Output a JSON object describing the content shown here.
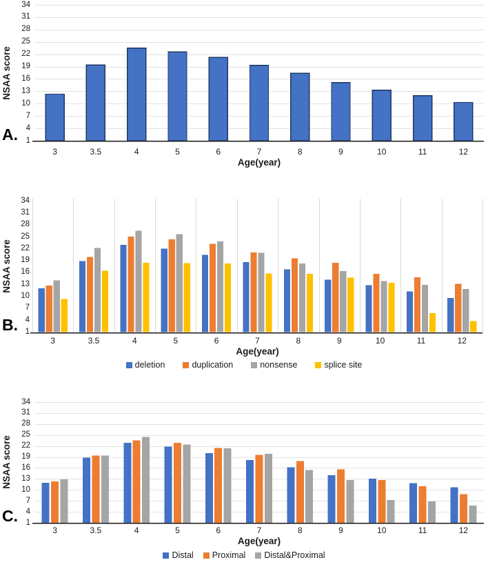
{
  "colors": {
    "blue": "#4472C4",
    "orange": "#ED7D31",
    "gray": "#A5A5A5",
    "yellow": "#FFC000",
    "bar_border": "#1F3864",
    "gridline": "#E2E2E2",
    "vertical_gridline": "#D9D9D9",
    "axis_line": "#1a1a1a",
    "text": "#1a1a1a"
  },
  "chart_data": [
    {
      "id": "A",
      "panel_label": "A.",
      "type": "bar",
      "xlabel": "Age(year)",
      "ylabel": "NSAA score",
      "categories": [
        "3",
        "3.5",
        "4",
        "5",
        "6",
        "7",
        "8",
        "9",
        "10",
        "11",
        "12"
      ],
      "ylim": [
        1,
        34
      ],
      "y_ticks": [
        1,
        4,
        7,
        10,
        13,
        16,
        19,
        22,
        25,
        28,
        31,
        34
      ],
      "grid": "horizontal",
      "legend_position": "none",
      "series": [
        {
          "name": "NSAA score",
          "color_key": "blue",
          "bordered": true,
          "values": [
            12.3,
            19.4,
            23.5,
            22.6,
            21.2,
            19.3,
            17.4,
            15.1,
            13.3,
            11.9,
            10.3
          ]
        }
      ]
    },
    {
      "id": "B",
      "panel_label": "B.",
      "type": "bar",
      "xlabel": "Age(year)",
      "ylabel": "NSAA score",
      "categories": [
        "3",
        "3.5",
        "4",
        "5",
        "6",
        "7",
        "8",
        "9",
        "10",
        "11",
        "12"
      ],
      "ylim": [
        1,
        34
      ],
      "y_ticks": [
        1,
        4,
        7,
        10,
        13,
        16,
        19,
        22,
        25,
        28,
        31,
        34
      ],
      "grid": "vertical",
      "legend_position": "bottom",
      "series": [
        {
          "name": "deletion",
          "color_key": "blue",
          "bordered": false,
          "values": [
            12.0,
            18.8,
            22.9,
            22.0,
            20.4,
            18.6,
            16.8,
            14.2,
            12.8,
            11.2,
            9.6
          ]
        },
        {
          "name": "duplication",
          "color_key": "orange",
          "bordered": false,
          "values": [
            12.7,
            19.9,
            25.0,
            24.3,
            23.2,
            21.0,
            19.5,
            18.4,
            15.6,
            14.8,
            13.1
          ]
        },
        {
          "name": "nonsense",
          "color_key": "gray",
          "bordered": false,
          "values": [
            14.0,
            22.1,
            26.5,
            25.6,
            23.8,
            20.9,
            18.2,
            16.3,
            13.8,
            12.9,
            11.8
          ]
        },
        {
          "name": "splice site",
          "color_key": "yellow",
          "bordered": false,
          "values": [
            9.3,
            16.4,
            18.4,
            18.3,
            18.2,
            15.7,
            15.6,
            14.7,
            13.4,
            5.8,
            3.8
          ]
        }
      ]
    },
    {
      "id": "C",
      "panel_label": "C.",
      "type": "bar",
      "xlabel": "Age(year)",
      "ylabel": "NSAA score",
      "categories": [
        "3",
        "3.5",
        "4",
        "5",
        "6",
        "7",
        "8",
        "9",
        "10",
        "11",
        "12"
      ],
      "ylim": [
        1,
        34
      ],
      "y_ticks": [
        1,
        4,
        7,
        10,
        13,
        16,
        19,
        22,
        25,
        28,
        31,
        34
      ],
      "grid": "horizontal",
      "legend_position": "bottom",
      "series": [
        {
          "name": "Distal",
          "color_key": "blue",
          "bordered": false,
          "values": [
            11.9,
            18.8,
            22.9,
            21.8,
            20.0,
            18.2,
            16.2,
            14.0,
            13.1,
            11.8,
            10.7
          ]
        },
        {
          "name": "Proximal",
          "color_key": "orange",
          "bordered": false,
          "values": [
            12.3,
            19.4,
            23.5,
            22.9,
            21.5,
            19.6,
            17.9,
            15.6,
            12.7,
            11.0,
            8.8
          ]
        },
        {
          "name": "Distal&Proximal",
          "color_key": "gray",
          "bordered": false,
          "values": [
            12.9,
            19.4,
            24.5,
            22.4,
            21.4,
            19.9,
            15.4,
            12.7,
            7.2,
            6.8,
            5.7
          ]
        }
      ]
    }
  ]
}
